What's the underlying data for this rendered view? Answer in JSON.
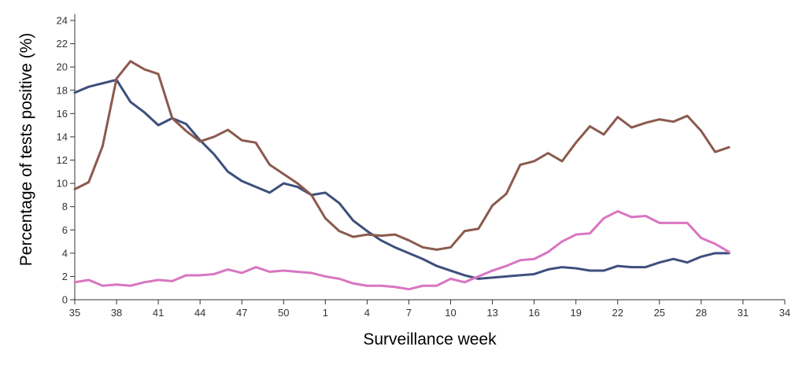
{
  "chart_data": {
    "type": "line",
    "xlabel": "Surveillance week",
    "ylabel": "Percentage of tests positive (%)",
    "ylim": [
      0,
      24
    ],
    "y_ticks": [
      0,
      2,
      4,
      6,
      8,
      10,
      12,
      14,
      16,
      18,
      20,
      22,
      24
    ],
    "x_ticks": [
      {
        "label": "35",
        "index": 0
      },
      {
        "label": "38",
        "index": 3
      },
      {
        "label": "41",
        "index": 6
      },
      {
        "label": "44",
        "index": 9
      },
      {
        "label": "47",
        "index": 12
      },
      {
        "label": "50",
        "index": 15
      },
      {
        "label": "1",
        "index": 18
      },
      {
        "label": "4",
        "index": 21
      },
      {
        "label": "7",
        "index": 24
      },
      {
        "label": "10",
        "index": 27
      },
      {
        "label": "13",
        "index": 30
      },
      {
        "label": "16",
        "index": 33
      },
      {
        "label": "19",
        "index": 36
      },
      {
        "label": "22",
        "index": 39
      },
      {
        "label": "25",
        "index": 42
      },
      {
        "label": "28",
        "index": 45
      },
      {
        "label": "31",
        "index": 48
      },
      {
        "label": "34",
        "index": 51
      }
    ],
    "x_weeks": [
      "35",
      "36",
      "37",
      "38",
      "39",
      "40",
      "41",
      "42",
      "43",
      "44",
      "45",
      "46",
      "47",
      "48",
      "49",
      "50",
      "51",
      "52",
      "1",
      "2",
      "3",
      "4",
      "5",
      "6",
      "7",
      "8",
      "9",
      "10",
      "11",
      "12",
      "13",
      "14",
      "15",
      "16",
      "17",
      "18",
      "19",
      "20",
      "21",
      "22",
      "23",
      "24",
      "25",
      "26",
      "27",
      "28",
      "29",
      "30"
    ],
    "grid": false,
    "series": [
      {
        "color": "#3d4f7c",
        "values": [
          17.8,
          18.3,
          18.6,
          18.9,
          17.0,
          16.1,
          15.0,
          15.6,
          15.1,
          13.7,
          12.5,
          11.0,
          10.2,
          9.7,
          9.2,
          10.0,
          9.7,
          9.0,
          9.2,
          8.3,
          6.8,
          5.9,
          5.1,
          4.5,
          4.0,
          3.5,
          2.9,
          2.5,
          2.1,
          1.8,
          1.9,
          2.0,
          2.1,
          2.2,
          2.6,
          2.8,
          2.7,
          2.5,
          2.5,
          2.9,
          2.8,
          2.8,
          3.2,
          3.5,
          3.2,
          3.7,
          4.0,
          4.0
        ]
      },
      {
        "color": "#8b5a4e",
        "values": [
          9.5,
          10.1,
          13.2,
          19.0,
          20.5,
          19.8,
          19.4,
          15.6,
          14.5,
          13.6,
          14.0,
          14.6,
          13.7,
          13.5,
          11.6,
          10.8,
          10.0,
          9.0,
          7.0,
          5.9,
          5.4,
          5.6,
          5.5,
          5.6,
          5.1,
          4.5,
          4.3,
          4.5,
          5.9,
          6.1,
          8.1,
          9.1,
          11.6,
          11.9,
          12.6,
          11.9,
          13.5,
          14.9,
          14.2,
          15.7,
          14.8,
          15.2,
          15.5,
          15.3,
          15.8,
          14.5,
          12.7,
          13.1
        ]
      },
      {
        "color": "#d975c1",
        "values": [
          1.5,
          1.7,
          1.2,
          1.3,
          1.2,
          1.5,
          1.7,
          1.6,
          2.1,
          2.1,
          2.2,
          2.6,
          2.3,
          2.8,
          2.4,
          2.5,
          2.4,
          2.3,
          2.0,
          1.8,
          1.4,
          1.2,
          1.2,
          1.1,
          0.9,
          1.2,
          1.2,
          1.8,
          1.5,
          2.0,
          2.5,
          2.9,
          3.4,
          3.5,
          4.1,
          5.0,
          5.6,
          5.7,
          7.0,
          7.6,
          7.1,
          7.2,
          6.6,
          6.6,
          6.6,
          5.3,
          4.8,
          4.1
        ]
      }
    ]
  }
}
